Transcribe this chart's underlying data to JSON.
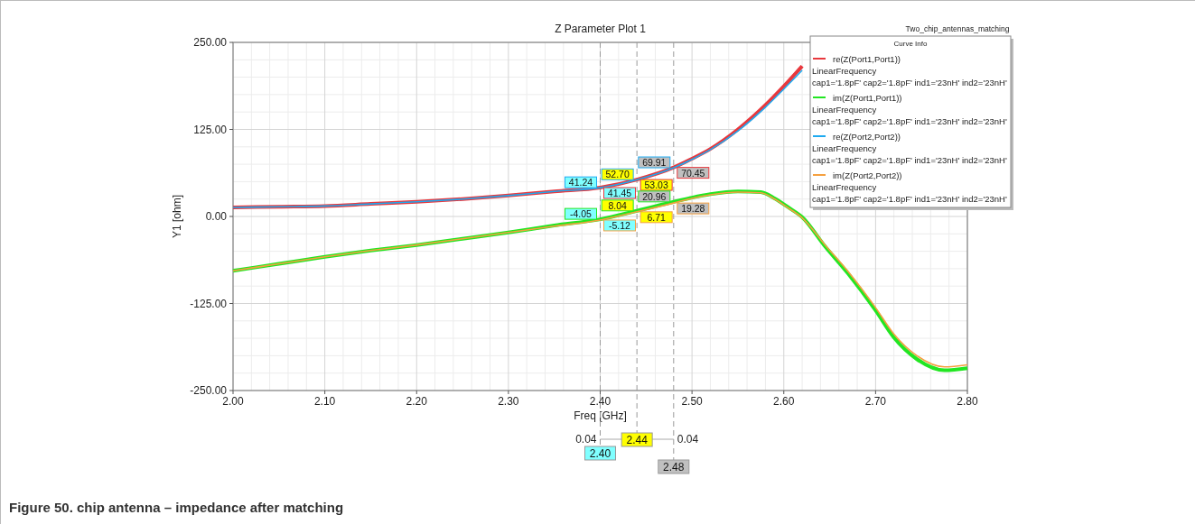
{
  "chart_data": {
    "type": "line",
    "title": "Z Parameter Plot 1",
    "xlabel": "Freq [GHz]",
    "ylabel": "Y1 [ohm]",
    "legend_title": "Curve Info",
    "xlim": [
      2.0,
      2.8
    ],
    "ylim": [
      -250,
      250
    ],
    "xticks": [
      {
        "value": 2.0,
        "label": "2.00"
      },
      {
        "value": 2.1,
        "label": "2.10"
      },
      {
        "value": 2.2,
        "label": "2.20"
      },
      {
        "value": 2.3,
        "label": "2.30"
      },
      {
        "value": 2.4,
        "label": "2.40"
      },
      {
        "value": 2.5,
        "label": "2.50"
      },
      {
        "value": 2.6,
        "label": "2.60"
      },
      {
        "value": 2.7,
        "label": "2.70"
      },
      {
        "value": 2.8,
        "label": "2.80"
      }
    ],
    "yticks": [
      {
        "value": -250,
        "label": "-250.00"
      },
      {
        "value": -125,
        "label": "-125.00"
      },
      {
        "value": 0,
        "label": "0.00"
      },
      {
        "value": 125,
        "label": "125.00"
      },
      {
        "value": 250,
        "label": "250.00"
      }
    ],
    "grid": true,
    "legend": "top right",
    "marker": "none",
    "line_style": "solid",
    "series": [
      {
        "name": "re(Z(Port1,Port1))\nLinearFrequency\ncap1='1.8pF' cap2='1.8pF' ind1='23nH' ind2='23nH'",
        "color": "#e8383d",
        "x": [
          2.0,
          2.05,
          2.1,
          2.15,
          2.2,
          2.25,
          2.3,
          2.35,
          2.4,
          2.44,
          2.48,
          2.5,
          2.52,
          2.55,
          2.58,
          2.6,
          2.62
        ],
        "values": [
          13,
          14,
          15,
          18,
          21,
          25,
          30,
          36,
          41.45,
          53.03,
          70.45,
          83,
          97,
          125,
          160,
          187,
          216
        ]
      },
      {
        "name": "im(Z(Port1,Port1))\nLinearFrequency\ncap1='1.8pF' cap2='1.8pF' ind1='23nH' ind2='23nH'",
        "color": "#22e622",
        "x": [
          2.0,
          2.05,
          2.1,
          2.15,
          2.2,
          2.25,
          2.3,
          2.35,
          2.4,
          2.44,
          2.48,
          2.5,
          2.52,
          2.55,
          2.575,
          2.59,
          2.605,
          2.62,
          2.645,
          2.67,
          2.7,
          2.72,
          2.745,
          2.775,
          2.8
        ],
        "values": [
          -78,
          -68,
          -58,
          -49,
          -41,
          -32,
          -23,
          -13,
          -4.05,
          8.04,
          20.96,
          27,
          32,
          36,
          35,
          26,
          13,
          -1,
          -43,
          -82,
          -135,
          -174,
          -205,
          -221,
          -218
        ]
      },
      {
        "name": "re(Z(Port2,Port2))\nLinearFrequency\ncap1='1.8pF' cap2='1.8pF' ind1='23nH' ind2='23nH'",
        "color": "#1eaaf0",
        "x": [
          2.0,
          2.05,
          2.1,
          2.15,
          2.2,
          2.25,
          2.3,
          2.35,
          2.4,
          2.44,
          2.48,
          2.5,
          2.52,
          2.55,
          2.58,
          2.6,
          2.62
        ],
        "values": [
          13,
          14,
          15,
          18,
          21,
          25,
          30,
          36,
          41.24,
          52.7,
          69.91,
          82,
          96,
          123,
          157,
          183,
          210
        ]
      },
      {
        "name": "im(Z(Port2,Port2))\nLinearFrequency\ncap1='1.8pF' cap2='1.8pF' ind1='23nH' ind2='23nH'",
        "color": "#f5a040",
        "x": [
          2.0,
          2.05,
          2.1,
          2.15,
          2.2,
          2.25,
          2.3,
          2.35,
          2.4,
          2.44,
          2.48,
          2.5,
          2.52,
          2.55,
          2.575,
          2.59,
          2.605,
          2.62,
          2.645,
          2.67,
          2.7,
          2.72,
          2.745,
          2.775,
          2.8
        ],
        "values": [
          -78,
          -68,
          -58,
          -49,
          -41,
          -32,
          -23,
          -14,
          -5.12,
          6.71,
          19.28,
          26,
          31,
          35,
          34,
          25,
          12,
          -2,
          -41,
          -79,
          -131,
          -169,
          -200,
          -216,
          -213
        ]
      }
    ],
    "ref_lines": [
      {
        "axis": "x",
        "value": 2.4,
        "label": "2.40",
        "line_style": "dashed"
      },
      {
        "axis": "x",
        "value": 2.44,
        "label": "2.44",
        "line_style": "dashed"
      },
      {
        "axis": "x",
        "value": 2.48,
        "label": "2.48",
        "line_style": "dashed"
      }
    ],
    "annotations": [
      "Two_chip_antennas_matching",
      "0.04",
      "0.04",
      "Figure 50. chip antenna – impedance after matching",
      {
        "text": "41.24",
        "x": 2.4,
        "y": 41.24
      },
      {
        "text": "41.45",
        "x": 2.4,
        "y": 41.45
      },
      {
        "text": "52.70",
        "x": 2.44,
        "y": 52.7
      },
      {
        "text": "53.03",
        "x": 2.44,
        "y": 53.03
      },
      {
        "text": "69.91",
        "x": 2.48,
        "y": 69.91
      },
      {
        "text": "70.45",
        "x": 2.48,
        "y": 70.45
      },
      {
        "text": "-4.05",
        "x": 2.4,
        "y": -4.05
      },
      {
        "text": "-5.12",
        "x": 2.4,
        "y": -5.12
      },
      {
        "text": "8.04",
        "x": 2.44,
        "y": 8.04
      },
      {
        "text": "6.71",
        "x": 2.44,
        "y": 6.71
      },
      {
        "text": "20.96",
        "x": 2.48,
        "y": 20.96
      },
      {
        "text": "19.28",
        "x": 2.48,
        "y": 19.28
      }
    ]
  }
}
